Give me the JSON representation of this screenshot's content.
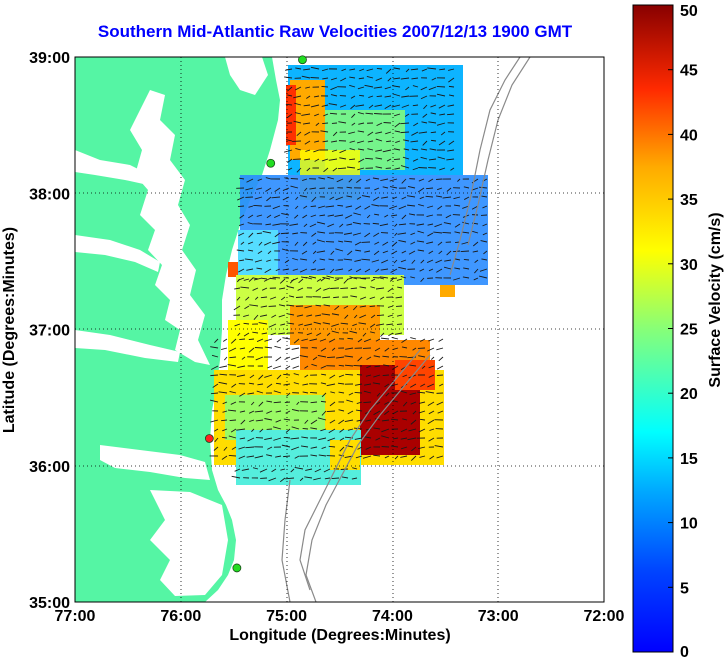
{
  "title": "Southern Mid-Atlantic Raw Velocities 2007/12/13 1900 GMT",
  "colors": {
    "land": "#55f5a4",
    "water": "#ffffff",
    "bathymetry": "#8a8a8a",
    "station_active": "#22dd22",
    "station_alert": "#ff2020"
  },
  "map": {
    "xlabel": "Longitude (Degrees:Minutes)",
    "ylabel": "Latitude (Degrees:Minutes)",
    "x_ticks": [
      "77:00",
      "76:00",
      "75:00",
      "74:00",
      "73:00",
      "72:00"
    ],
    "y_ticks": [
      "39:00",
      "38:00",
      "37:00",
      "36:00",
      "35:00"
    ],
    "xlim": [
      -77,
      -72
    ],
    "ylim": [
      35,
      39
    ],
    "grid": "dotted"
  },
  "colorbar": {
    "label": "Surface Velocity (cm/s)",
    "range": [
      0,
      50
    ],
    "ticks": [
      "50",
      "45",
      "40",
      "35",
      "30",
      "25",
      "20",
      "15",
      "10",
      "5",
      "0"
    ],
    "colormap": "jet"
  },
  "stations": [
    {
      "lon": -74.85,
      "lat": 38.98,
      "status": "active"
    },
    {
      "lon": -75.15,
      "lat": 38.22,
      "status": "active"
    },
    {
      "lon": -75.73,
      "lat": 36.2,
      "status": "alert"
    },
    {
      "lon": -75.47,
      "lat": 35.25,
      "status": "active"
    }
  ]
}
